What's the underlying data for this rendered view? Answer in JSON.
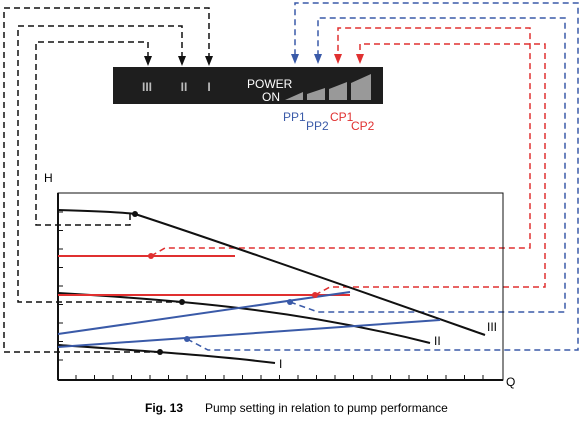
{
  "panel": {
    "speeds": [
      "III",
      "II",
      "I"
    ],
    "power": "POWER",
    "on": "ON"
  },
  "settings": {
    "pp1": "PP1",
    "pp2": "PP2",
    "cp1": "CP1",
    "cp2": "CP2"
  },
  "axes": {
    "y": "H",
    "x": "Q"
  },
  "curves": [
    "III",
    "II",
    "I"
  ],
  "caption": {
    "label": "Fig. 13",
    "text": "Pump setting in relation to pump performance"
  }
}
